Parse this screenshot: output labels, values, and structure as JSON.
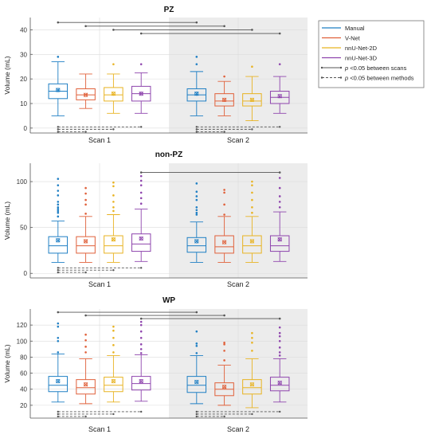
{
  "colors": {
    "manual": "#1f7fc4",
    "vnet": "#e0603a",
    "nnunet2d": "#e8b322",
    "nnunet3d": "#8e44ad",
    "axis": "#555555",
    "shade": "#ececec",
    "sig": "#555555"
  },
  "legend": {
    "items": [
      {
        "key": "manual",
        "label": "Manual"
      },
      {
        "key": "vnet",
        "label": "V-Net"
      },
      {
        "key": "nnunet2d",
        "label": "nnU-Net-2D"
      },
      {
        "key": "nnunet3d",
        "label": "nnU-Net-3D"
      }
    ],
    "scans_prefix": "p",
    "scans_text": " <0.05 between scans",
    "methods_prefix": "p",
    "methods_text": " <0.05 between methods"
  },
  "chart_data": [
    {
      "type": "box",
      "title": "PZ",
      "ylabel": "Volume (mL)",
      "ylim": [
        -2,
        45
      ],
      "yticks": [
        0,
        10,
        20,
        30,
        40
      ],
      "categories": [
        "Scan 1",
        "Scan 2"
      ],
      "shaded_category": "Scan 2",
      "series": [
        {
          "method": "manual",
          "boxes": [
            {
              "whislo": 5,
              "q1": 12,
              "med": 15,
              "q3": 18,
              "whishi": 27,
              "mean": 15.5,
              "fliers": [
                29
              ]
            },
            {
              "whislo": 5,
              "q1": 11,
              "med": 13.5,
              "q3": 16,
              "whishi": 23,
              "mean": 14,
              "fliers": [
                26,
                29
              ]
            }
          ]
        },
        {
          "method": "vnet",
          "boxes": [
            {
              "whislo": 8,
              "q1": 11.5,
              "med": 13.5,
              "q3": 16,
              "whishi": 22,
              "mean": 13.5,
              "fliers": []
            },
            {
              "whislo": 5,
              "q1": 9,
              "med": 11,
              "q3": 14,
              "whishi": 19,
              "mean": 11.5,
              "fliers": [
                21
              ]
            }
          ]
        },
        {
          "method": "nnunet2d",
          "boxes": [
            {
              "whislo": 6,
              "q1": 11,
              "med": 13.5,
              "q3": 16.5,
              "whishi": 22,
              "mean": 14,
              "fliers": [
                26
              ]
            },
            {
              "whislo": 3,
              "q1": 9,
              "med": 11,
              "q3": 14,
              "whishi": 21,
              "mean": 11.5,
              "fliers": [
                25
              ]
            }
          ]
        },
        {
          "method": "nnunet3d",
          "boxes": [
            {
              "whislo": 6,
              "q1": 11,
              "med": 14,
              "q3": 17,
              "whishi": 22.5,
              "mean": 14,
              "fliers": [
                26
              ]
            },
            {
              "whislo": 6,
              "q1": 10,
              "med": 12.5,
              "q3": 15,
              "whishi": 21,
              "mean": 13,
              "fliers": [
                26
              ]
            }
          ]
        }
      ],
      "sig_scans": [
        {
          "y": 43,
          "from": [
            0,
            "manual"
          ],
          "to": [
            1,
            "manual"
          ]
        },
        {
          "y": 41.5,
          "from": [
            0,
            "vnet"
          ],
          "to": [
            1,
            "vnet"
          ]
        },
        {
          "y": 40,
          "from": [
            0,
            "nnunet2d"
          ],
          "to": [
            1,
            "nnunet2d"
          ]
        },
        {
          "y": 38.5,
          "from": [
            0,
            "nnunet3d"
          ],
          "to": [
            1,
            "nnunet3d"
          ]
        }
      ],
      "sig_methods": [
        {
          "y": 0.5,
          "from": [
            0,
            "manual"
          ],
          "to": [
            0,
            "nnunet3d"
          ]
        },
        {
          "y": -0.5,
          "from": [
            0,
            "manual"
          ],
          "to": [
            0,
            "nnunet2d"
          ]
        },
        {
          "y": -1.5,
          "from": [
            0,
            "manual"
          ],
          "to": [
            0,
            "vnet"
          ]
        },
        {
          "y": 0.5,
          "from": [
            1,
            "manual"
          ],
          "to": [
            1,
            "nnunet3d"
          ]
        },
        {
          "y": -0.5,
          "from": [
            1,
            "manual"
          ],
          "to": [
            1,
            "nnunet2d"
          ]
        },
        {
          "y": -1.5,
          "from": [
            1,
            "manual"
          ],
          "to": [
            1,
            "vnet"
          ]
        }
      ]
    },
    {
      "type": "box",
      "title": "non-PZ",
      "ylabel": "Volume (mL)",
      "ylim": [
        -5,
        120
      ],
      "yticks": [
        0,
        50,
        100
      ],
      "categories": [
        "Scan 1",
        "Scan 2"
      ],
      "shaded_category": "Scan 2",
      "series": [
        {
          "method": "manual",
          "boxes": [
            {
              "whislo": 12,
              "q1": 22,
              "med": 30,
              "q3": 40,
              "whishi": 57,
              "mean": 36,
              "fliers": [
                62,
                66,
                68,
                70,
                72,
                75,
                78,
                85,
                90,
                96,
                103
              ]
            },
            {
              "whislo": 12,
              "q1": 23,
              "med": 30,
              "q3": 39,
              "whishi": 56,
              "mean": 35,
              "fliers": [
                64,
                66,
                69,
                72,
                80,
                84,
                89,
                98
              ]
            }
          ]
        },
        {
          "method": "vnet",
          "boxes": [
            {
              "whislo": 12,
              "q1": 22,
              "med": 30,
              "q3": 40,
              "whishi": 62,
              "mean": 35,
              "fliers": [
                65,
                75,
                80,
                87,
                93
              ]
            },
            {
              "whislo": 12,
              "q1": 22,
              "med": 29,
              "q3": 41,
              "whishi": 62,
              "mean": 34,
              "fliers": [
                64,
                75,
                88,
                91
              ]
            }
          ]
        },
        {
          "method": "nnunet2d",
          "boxes": [
            {
              "whislo": 12,
              "q1": 22,
              "med": 30,
              "q3": 41,
              "whishi": 64,
              "mean": 37,
              "fliers": [
                68,
                72,
                78,
                85,
                95,
                99
              ]
            },
            {
              "whislo": 12,
              "q1": 22,
              "med": 30,
              "q3": 41,
              "whishi": 62,
              "mean": 35,
              "fliers": [
                66,
                72,
                80,
                88,
                96,
                100
              ]
            }
          ]
        },
        {
          "method": "nnunet3d",
          "boxes": [
            {
              "whislo": 13,
              "q1": 24,
              "med": 32,
              "q3": 43,
              "whishi": 70,
              "mean": 38,
              "fliers": [
                76,
                82,
                88,
                96,
                101,
                106
              ]
            },
            {
              "whislo": 13,
              "q1": 24,
              "med": 30,
              "q3": 41,
              "whishi": 67,
              "mean": 37,
              "fliers": [
                72,
                78,
                84,
                93,
                104
              ]
            }
          ]
        }
      ],
      "sig_scans": [
        {
          "y": 110,
          "from": [
            0,
            "nnunet3d"
          ],
          "to": [
            1,
            "nnunet3d"
          ]
        }
      ],
      "sig_methods": [
        {
          "y": 6,
          "from": [
            0,
            "manual"
          ],
          "to": [
            0,
            "nnunet3d"
          ]
        },
        {
          "y": 3.5,
          "from": [
            0,
            "manual"
          ],
          "to": [
            0,
            "nnunet2d"
          ]
        },
        {
          "y": 1,
          "from": [
            0,
            "manual"
          ],
          "to": [
            0,
            "vnet"
          ]
        }
      ]
    },
    {
      "type": "box",
      "title": "WP",
      "ylabel": "Volume (mL)",
      "ylim": [
        4,
        140
      ],
      "yticks": [
        20,
        40,
        60,
        80,
        100,
        120
      ],
      "categories": [
        "Scan 1",
        "Scan 2"
      ],
      "shaded_category": "Scan 2",
      "series": [
        {
          "method": "manual",
          "boxes": [
            {
              "whislo": 24,
              "q1": 37,
              "med": 45,
              "q3": 56,
              "whishi": 84,
              "mean": 50,
              "fliers": [
                86,
                100,
                104,
                118,
                122
              ]
            },
            {
              "whislo": 22,
              "q1": 36,
              "med": 45,
              "q3": 56,
              "whishi": 82,
              "mean": 49,
              "fliers": [
                85,
                94,
                97,
                112
              ]
            }
          ]
        },
        {
          "method": "vnet",
          "boxes": [
            {
              "whislo": 22,
              "q1": 34,
              "med": 42,
              "q3": 52,
              "whishi": 78,
              "mean": 46,
              "fliers": [
                86,
                93,
                101,
                108
              ]
            },
            {
              "whislo": 20,
              "q1": 32,
              "med": 40,
              "q3": 48,
              "whishi": 70,
              "mean": 43,
              "fliers": [
                76,
                88,
                96,
                98
              ]
            }
          ]
        },
        {
          "method": "nnunet2d",
          "boxes": [
            {
              "whislo": 24,
              "q1": 37,
              "med": 45,
              "q3": 55,
              "whishi": 82,
              "mean": 50,
              "fliers": [
                86,
                95,
                104,
                113,
                118
              ]
            },
            {
              "whislo": 17,
              "q1": 34,
              "med": 42,
              "q3": 52,
              "whishi": 78,
              "mean": 46,
              "fliers": [
                88,
                98,
                104,
                110
              ]
            }
          ]
        },
        {
          "method": "nnunet3d",
          "boxes": [
            {
              "whislo": 25,
              "q1": 39,
              "med": 47,
              "q3": 56,
              "whishi": 83,
              "mean": 50,
              "fliers": [
                85,
                90,
                96,
                104,
                112,
                120,
                124
              ]
            },
            {
              "whislo": 24,
              "q1": 38,
              "med": 45,
              "q3": 55,
              "whishi": 78,
              "mean": 48,
              "fliers": [
                82,
                86,
                92,
                100,
                106,
                110,
                117
              ]
            }
          ]
        }
      ],
      "sig_scans": [
        {
          "y": 136,
          "from": [
            0,
            "manual"
          ],
          "to": [
            1,
            "manual"
          ]
        },
        {
          "y": 132,
          "from": [
            0,
            "vnet"
          ],
          "to": [
            1,
            "vnet"
          ]
        },
        {
          "y": 128,
          "from": [
            0,
            "nnunet3d"
          ],
          "to": [
            1,
            "nnunet3d"
          ]
        }
      ],
      "sig_methods": [
        {
          "y": 12,
          "from": [
            0,
            "manual"
          ],
          "to": [
            0,
            "nnunet3d"
          ]
        },
        {
          "y": 9,
          "from": [
            0,
            "manual"
          ],
          "to": [
            0,
            "nnunet2d"
          ]
        },
        {
          "y": 6,
          "from": [
            0,
            "manual"
          ],
          "to": [
            0,
            "vnet"
          ]
        },
        {
          "y": 12,
          "from": [
            1,
            "manual"
          ],
          "to": [
            1,
            "nnunet3d"
          ]
        },
        {
          "y": 9,
          "from": [
            1,
            "manual"
          ],
          "to": [
            1,
            "nnunet2d"
          ]
        },
        {
          "y": 6,
          "from": [
            1,
            "manual"
          ],
          "to": [
            1,
            "vnet"
          ]
        }
      ]
    }
  ]
}
